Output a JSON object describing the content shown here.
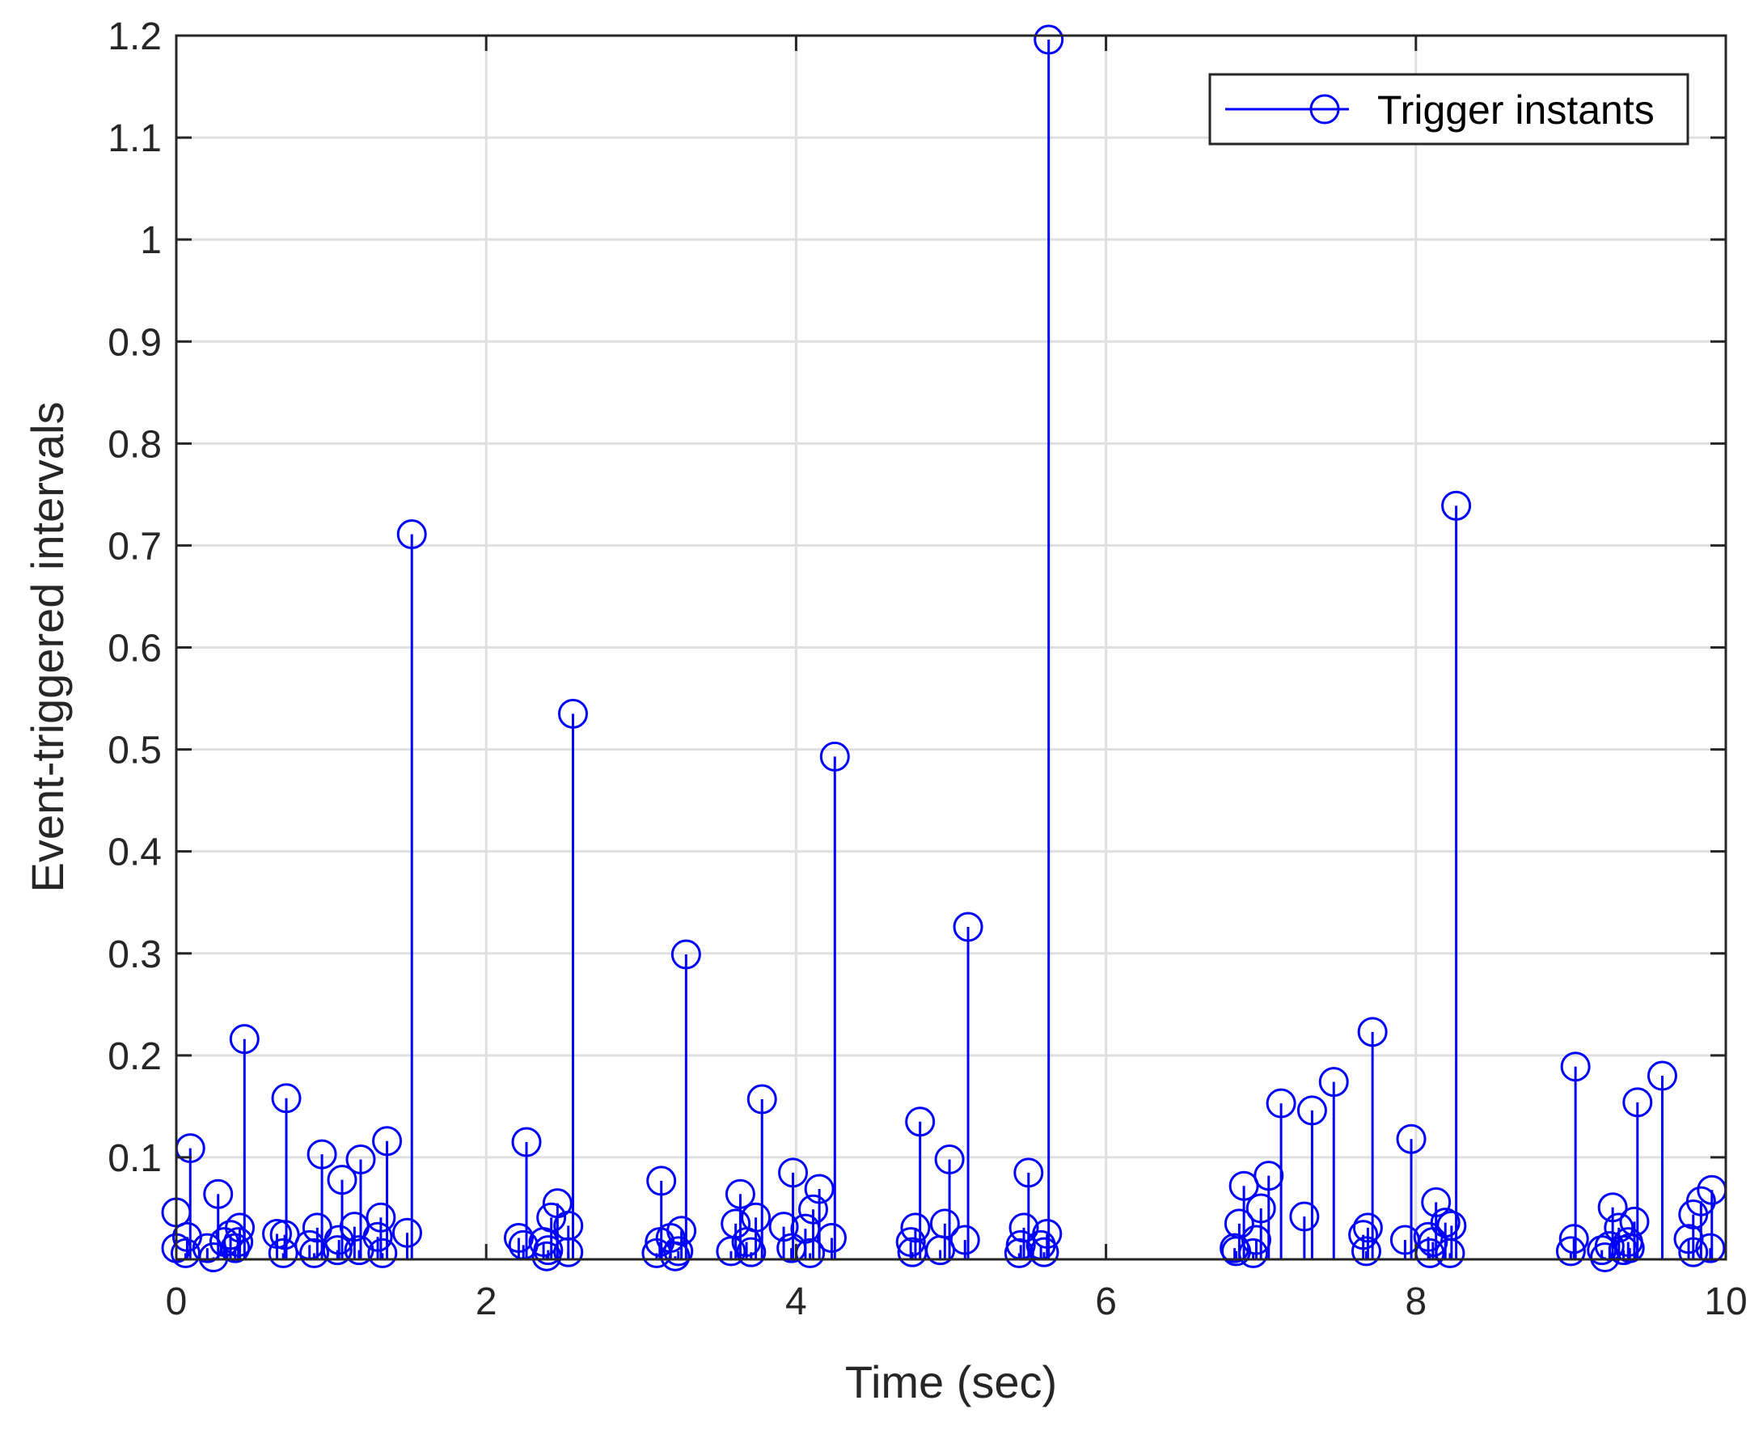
{
  "chart_data": {
    "type": "stem",
    "title": "",
    "xlabel": "Time (sec)",
    "ylabel": "Event-triggered intervals",
    "xlim": [
      0,
      10
    ],
    "ylim": [
      0,
      1.2
    ],
    "xticks": [
      0,
      2,
      4,
      6,
      8,
      10
    ],
    "xtick_labels": [
      "0",
      "2",
      "4",
      "6",
      "8",
      "10"
    ],
    "yticks": [
      0.1,
      0.2,
      0.3,
      0.4,
      0.5,
      0.6,
      0.7,
      0.8,
      0.9,
      1,
      1.1,
      1.2
    ],
    "ytick_labels": [
      "0.1",
      "0.2",
      "0.3",
      "0.4",
      "0.5",
      "0.6",
      "0.7",
      "0.8",
      "0.9",
      "1",
      "1.1",
      "1.2"
    ],
    "grid": true,
    "legend": {
      "placement": "top-right",
      "entries": [
        "Trigger instants"
      ]
    },
    "series": [
      {
        "name": "Trigger instants",
        "color": "#0000ff",
        "marker": "circle",
        "points": [
          [
            0.0,
            0.046
          ],
          [
            0.0,
            0.011
          ],
          [
            0.06,
            0.006
          ],
          [
            0.07,
            0.022
          ],
          [
            0.09,
            0.109
          ],
          [
            0.2,
            0.011
          ],
          [
            0.24,
            0.002
          ],
          [
            0.27,
            0.064
          ],
          [
            0.31,
            0.017
          ],
          [
            0.35,
            0.024
          ],
          [
            0.38,
            0.011
          ],
          [
            0.4,
            0.017
          ],
          [
            0.41,
            0.031
          ],
          [
            0.44,
            0.216
          ],
          [
            0.65,
            0.025
          ],
          [
            0.69,
            0.006
          ],
          [
            0.7,
            0.024
          ],
          [
            0.71,
            0.158
          ],
          [
            0.86,
            0.014
          ],
          [
            0.89,
            0.006
          ],
          [
            0.91,
            0.031
          ],
          [
            0.94,
            0.103
          ],
          [
            1.04,
            0.009
          ],
          [
            1.05,
            0.019
          ],
          [
            1.07,
            0.078
          ],
          [
            1.15,
            0.032
          ],
          [
            1.18,
            0.009
          ],
          [
            1.19,
            0.098
          ],
          [
            1.3,
            0.022
          ],
          [
            1.32,
            0.041
          ],
          [
            1.33,
            0.006
          ],
          [
            1.36,
            0.116
          ],
          [
            1.49,
            0.026
          ],
          [
            1.52,
            0.711
          ],
          [
            2.21,
            0.021
          ],
          [
            2.24,
            0.014
          ],
          [
            2.26,
            0.115
          ],
          [
            2.37,
            0.017
          ],
          [
            2.39,
            0.003
          ],
          [
            2.4,
            0.009
          ],
          [
            2.42,
            0.041
          ],
          [
            2.46,
            0.055
          ],
          [
            2.53,
            0.033
          ],
          [
            2.53,
            0.007
          ],
          [
            2.56,
            0.535
          ],
          [
            3.1,
            0.006
          ],
          [
            3.12,
            0.017
          ],
          [
            3.13,
            0.077
          ],
          [
            3.19,
            0.021
          ],
          [
            3.22,
            0.003
          ],
          [
            3.24,
            0.008
          ],
          [
            3.26,
            0.028
          ],
          [
            3.29,
            0.299
          ],
          [
            3.58,
            0.008
          ],
          [
            3.61,
            0.035
          ],
          [
            3.64,
            0.064
          ],
          [
            3.68,
            0.017
          ],
          [
            3.71,
            0.007
          ],
          [
            3.74,
            0.041
          ],
          [
            3.78,
            0.157
          ],
          [
            3.92,
            0.032
          ],
          [
            3.97,
            0.011
          ],
          [
            3.98,
            0.085
          ],
          [
            4.06,
            0.03
          ],
          [
            4.09,
            0.006
          ],
          [
            4.11,
            0.049
          ],
          [
            4.15,
            0.069
          ],
          [
            4.23,
            0.021
          ],
          [
            4.25,
            0.493
          ],
          [
            4.74,
            0.017
          ],
          [
            4.75,
            0.007
          ],
          [
            4.77,
            0.031
          ],
          [
            4.8,
            0.135
          ],
          [
            4.93,
            0.009
          ],
          [
            4.96,
            0.035
          ],
          [
            4.99,
            0.098
          ],
          [
            5.09,
            0.019
          ],
          [
            5.11,
            0.326
          ],
          [
            5.44,
            0.006
          ],
          [
            5.45,
            0.014
          ],
          [
            5.47,
            0.031
          ],
          [
            5.5,
            0.085
          ],
          [
            5.58,
            0.014
          ],
          [
            5.6,
            0.007
          ],
          [
            5.62,
            0.025
          ],
          [
            5.63,
            1.196
          ],
          [
            6.83,
            0.011
          ],
          [
            6.84,
            0.008
          ],
          [
            6.86,
            0.035
          ],
          [
            6.89,
            0.072
          ],
          [
            6.95,
            0.006
          ],
          [
            6.97,
            0.019
          ],
          [
            7.0,
            0.05
          ],
          [
            7.05,
            0.082
          ],
          [
            7.13,
            0.153
          ],
          [
            7.28,
            0.042
          ],
          [
            7.33,
            0.146
          ],
          [
            7.47,
            0.174
          ],
          [
            7.66,
            0.024
          ],
          [
            7.68,
            0.008
          ],
          [
            7.69,
            0.031
          ],
          [
            7.72,
            0.223
          ],
          [
            7.93,
            0.019
          ],
          [
            7.97,
            0.118
          ],
          [
            8.08,
            0.022
          ],
          [
            8.09,
            0.006
          ],
          [
            8.11,
            0.017
          ],
          [
            8.13,
            0.056
          ],
          [
            8.19,
            0.036
          ],
          [
            8.22,
            0.006
          ],
          [
            8.23,
            0.033
          ],
          [
            8.26,
            0.739
          ],
          [
            9.0,
            0.008
          ],
          [
            9.02,
            0.02
          ],
          [
            9.03,
            0.189
          ],
          [
            9.2,
            0.009
          ],
          [
            9.22,
            0.002
          ],
          [
            9.25,
            0.013
          ],
          [
            9.27,
            0.051
          ],
          [
            9.31,
            0.031
          ],
          [
            9.34,
            0.009
          ],
          [
            9.37,
            0.017
          ],
          [
            9.38,
            0.011
          ],
          [
            9.41,
            0.037
          ],
          [
            9.43,
            0.154
          ],
          [
            9.59,
            0.18
          ],
          [
            9.76,
            0.02
          ],
          [
            9.79,
            0.044
          ],
          [
            9.79,
            0.007
          ],
          [
            9.84,
            0.057
          ],
          [
            9.9,
            0.011
          ],
          [
            9.91,
            0.068
          ]
        ]
      }
    ]
  }
}
